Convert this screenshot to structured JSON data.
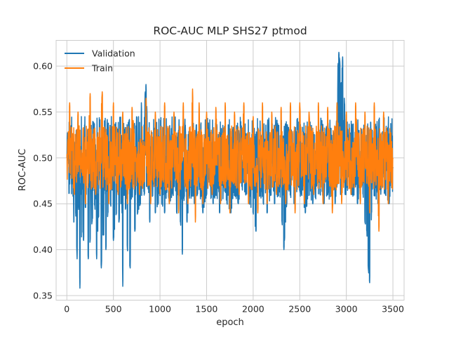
{
  "chart_data": {
    "type": "line",
    "title": "ROC-AUC MLP SHS27 ptmod",
    "xlabel": "epoch",
    "ylabel": "ROC-AUC",
    "xlim": [
      -115,
      3620
    ],
    "ylim": [
      0.345,
      0.628
    ],
    "xticks": [
      0,
      500,
      1000,
      1500,
      2000,
      2500,
      3000,
      3500
    ],
    "xtick_labels": [
      "0",
      "500",
      "1000",
      "1500",
      "2000",
      "2500",
      "3000",
      "3500"
    ],
    "yticks": [
      0.35,
      0.4,
      0.45,
      0.5,
      0.55,
      0.6
    ],
    "ytick_labels": [
      "0.35",
      "0.40",
      "0.45",
      "0.50",
      "0.55",
      "0.60"
    ],
    "grid": true,
    "legend_position": "top-left",
    "colors": {
      "Validation": "#1f77b4",
      "Train": "#ff7f0e"
    },
    "series": [
      {
        "name": "Validation",
        "color": "#1f77b4",
        "noise_band": [
          0.455,
          0.545
        ],
        "x": [
          0,
          10,
          60,
          75,
          95,
          110,
          125,
          140,
          160,
          180,
          200,
          230,
          250,
          270,
          300,
          320,
          340,
          370,
          390,
          420,
          440,
          470,
          500,
          530,
          560,
          590,
          600,
          630,
          650,
          680,
          700,
          730,
          760,
          790,
          800,
          820,
          840,
          850,
          860,
          870,
          890,
          920,
          950,
          980,
          1000,
          1020,
          1050,
          1080,
          1100,
          1140,
          1180,
          1220,
          1240,
          1260,
          1290,
          1330,
          1370,
          1400,
          1430,
          1460,
          1500,
          1540,
          1570,
          1600,
          1640,
          1680,
          1720,
          1760,
          1800,
          1840,
          1880,
          1920,
          1960,
          2000,
          2030,
          2070,
          2110,
          2150,
          2190,
          2230,
          2270,
          2310,
          2330,
          2360,
          2400,
          2440,
          2480,
          2520,
          2560,
          2600,
          2640,
          2680,
          2720,
          2760,
          2800,
          2840,
          2880,
          2900,
          2910,
          2920,
          2930,
          2945,
          2960,
          2980,
          3000,
          3040,
          3080,
          3120,
          3160,
          3180,
          3200,
          3220,
          3235,
          3250,
          3270,
          3300,
          3340,
          3380,
          3420,
          3460,
          3500
        ],
        "y": [
          0.5,
          0.525,
          0.5,
          0.43,
          0.44,
          0.39,
          0.45,
          0.358,
          0.42,
          0.41,
          0.45,
          0.39,
          0.41,
          0.43,
          0.45,
          0.39,
          0.44,
          0.38,
          0.42,
          0.4,
          0.44,
          0.45,
          0.41,
          0.44,
          0.43,
          0.46,
          0.36,
          0.45,
          0.4,
          0.38,
          0.47,
          0.42,
          0.44,
          0.45,
          0.56,
          0.49,
          0.57,
          0.58,
          0.55,
          0.47,
          0.43,
          0.46,
          0.44,
          0.45,
          0.46,
          0.45,
          0.44,
          0.47,
          0.45,
          0.46,
          0.44,
          0.43,
          0.395,
          0.46,
          0.43,
          0.47,
          0.45,
          0.46,
          0.47,
          0.44,
          0.46,
          0.47,
          0.45,
          0.46,
          0.44,
          0.47,
          0.45,
          0.44,
          0.46,
          0.45,
          0.47,
          0.46,
          0.45,
          0.44,
          0.42,
          0.46,
          0.45,
          0.44,
          0.46,
          0.45,
          0.46,
          0.43,
          0.4,
          0.45,
          0.46,
          0.45,
          0.47,
          0.46,
          0.44,
          0.46,
          0.45,
          0.47,
          0.46,
          0.45,
          0.46,
          0.47,
          0.45,
          0.47,
          0.6,
          0.615,
          0.605,
          0.58,
          0.61,
          0.56,
          0.54,
          0.47,
          0.46,
          0.45,
          0.47,
          0.46,
          0.43,
          0.42,
          0.38,
          0.364,
          0.44,
          0.46,
          0.45,
          0.47,
          0.46,
          0.45,
          0.49
        ]
      },
      {
        "name": "Train",
        "color": "#ff7f0e",
        "noise_band": [
          0.465,
          0.535
        ],
        "x": [
          0,
          30,
          80,
          120,
          200,
          250,
          310,
          380,
          450,
          500,
          550,
          600,
          650,
          700,
          780,
          850,
          900,
          950,
          1000,
          1050,
          1100,
          1150,
          1200,
          1250,
          1300,
          1350,
          1380,
          1420,
          1460,
          1500,
          1560,
          1600,
          1650,
          1700,
          1750,
          1800,
          1850,
          1900,
          1950,
          2000,
          2050,
          2100,
          2150,
          2200,
          2250,
          2300,
          2350,
          2400,
          2450,
          2500,
          2550,
          2600,
          2650,
          2700,
          2750,
          2800,
          2850,
          2900,
          2950,
          3000,
          3050,
          3100,
          3150,
          3200,
          3250,
          3300,
          3350,
          3400,
          3450,
          3500
        ],
        "y": [
          0.5,
          0.56,
          0.46,
          0.55,
          0.45,
          0.57,
          0.46,
          0.572,
          0.45,
          0.56,
          0.46,
          0.55,
          0.45,
          0.555,
          0.46,
          0.565,
          0.45,
          0.55,
          0.46,
          0.56,
          0.45,
          0.55,
          0.44,
          0.56,
          0.45,
          0.575,
          0.43,
          0.56,
          0.45,
          0.55,
          0.46,
          0.555,
          0.45,
          0.56,
          0.44,
          0.55,
          0.46,
          0.56,
          0.45,
          0.545,
          0.44,
          0.56,
          0.45,
          0.55,
          0.46,
          0.555,
          0.45,
          0.56,
          0.44,
          0.56,
          0.45,
          0.55,
          0.46,
          0.56,
          0.45,
          0.555,
          0.44,
          0.56,
          0.45,
          0.55,
          0.46,
          0.56,
          0.45,
          0.55,
          0.44,
          0.56,
          0.42,
          0.55,
          0.45,
          0.5
        ]
      }
    ]
  }
}
